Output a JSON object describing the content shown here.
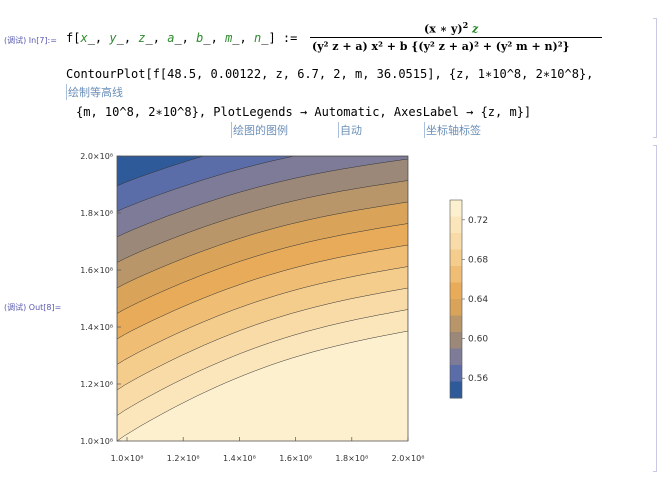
{
  "in_label": "(调试) In[7]:=",
  "out_label": "(调试) Out[8]=",
  "def_lhs_f": "f[",
  "def_args": [
    {
      "name": "x",
      "sep": "_, "
    },
    {
      "name": "y",
      "sep": "_, "
    },
    {
      "name": "z",
      "sep": "_, "
    },
    {
      "name": "a",
      "sep": "_, "
    },
    {
      "name": "b",
      "sep": "_, "
    },
    {
      "name": "m",
      "sep": "_, "
    },
    {
      "name": "n",
      "sep": "_] :="
    }
  ],
  "numerator": "(x ∗ y)",
  "numerator_exp": "2",
  "numerator_z": "z",
  "denominator": "(y² z + a) x² + b {(y² z + a)² + (y² m + n)²}",
  "line2": "ContourPlot[f[48.5, 0.00122, z, 6.7, 2, m, 36.0515], {z, 1∗10^8, 2∗10^8},",
  "hint1": "绘制等高线",
  "line3": "{m, 10^8, 2∗10^8}, PlotLegends → Automatic, AxesLabel → {z, m}]",
  "hint2": "绘图的图例",
  "hint3": "自动",
  "hint4": "坐标轴标签",
  "chart_data": {
    "type": "contour",
    "x_ticks": [
      "1.0×10⁸",
      "1.2×10⁸",
      "1.4×10⁸",
      "1.6×10⁸",
      "1.8×10⁸",
      "2.0×10⁸"
    ],
    "y_ticks": [
      "1.0×10⁸",
      "1.2×10⁸",
      "1.4×10⁸",
      "1.6×10⁸",
      "1.8×10⁸",
      "2.0×10⁸"
    ],
    "xlim": [
      100000000.0,
      200000000.0
    ],
    "ylim": [
      100000000.0,
      200000000.0
    ],
    "legend_ticks": [
      "0.72",
      "0.68",
      "0.64",
      "0.60",
      "0.56"
    ],
    "legend_range": [
      0.54,
      0.74
    ],
    "legend_placement": "right",
    "colors": [
      "#2e5a99",
      "#5a6da8",
      "#7d7b98",
      "#9c8878",
      "#b8966a",
      "#d9a459",
      "#e8ab5a",
      "#efbd74",
      "#f4cd8d",
      "#f8dba6",
      "#fbe6bb",
      "#fdf0cf"
    ]
  }
}
